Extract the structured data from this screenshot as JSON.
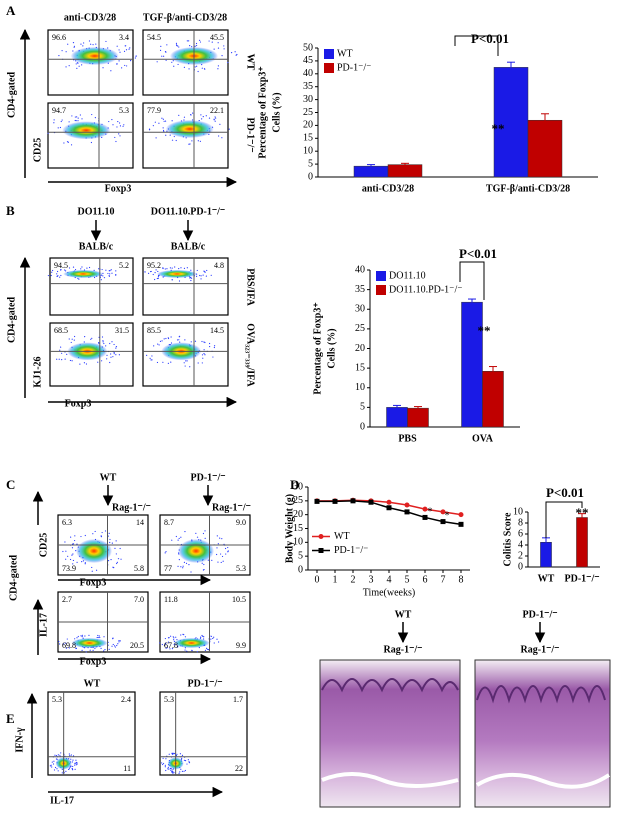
{
  "letters": [
    "A",
    "B",
    "C",
    "D",
    "E"
  ],
  "flow": {
    "a": {
      "columns": [
        "anti-CD3/28",
        "TGF-β/anti-CD3/28"
      ],
      "rows": [
        "WT",
        "PD-1⁻/⁻"
      ],
      "gate": "CD4-gated",
      "y_label": "CD25",
      "x_label": "Foxp3",
      "plots": [
        {
          "ul": "96.6",
          "ur": "3.4"
        },
        {
          "ul": "54.5",
          "ur": "45.5"
        },
        {
          "ul": "94.7",
          "ur": "5.3"
        },
        {
          "ul": "77.9",
          "ur": "22.1"
        }
      ]
    },
    "b": {
      "columns": [
        "DO11.10",
        "DO11.10.PD-1⁻/⁻"
      ],
      "hosts": [
        "BALB/c",
        "BALB/c"
      ],
      "rows": [
        "PBS/IFA",
        "OVA₃₂₃₋₃₃₉/IFA"
      ],
      "gate": "CD4-gated",
      "y_label": "KJ1-26",
      "x_label": "Foxp3",
      "plots": [
        {
          "ul": "94.5",
          "ur": "5.2"
        },
        {
          "ul": "95.2",
          "ur": "4.8"
        },
        {
          "ul": "68.5",
          "ur": "31.5"
        },
        {
          "ul": "85.5",
          "ur": "14.5"
        }
      ]
    },
    "c": {
      "columns": [
        "WT",
        "PD-1⁻/⁻"
      ],
      "hosts": [
        "Rag-1⁻/⁻",
        "Rag-1⁻/⁻"
      ],
      "gate": "CD4-gated",
      "y_labels": [
        "CD25",
        "IL-17"
      ],
      "x_labels": [
        "Foxp3",
        "Foxp3"
      ],
      "plots": [
        {
          "ul": "6.3",
          "ur": "14",
          "ll": "73.9",
          "lr": "5.8"
        },
        {
          "ul": "8.7",
          "ur": "9.0",
          "ll": "77",
          "lr": "5.3"
        },
        {
          "ul": "2.7",
          "ur": "7.0",
          "ll": "69.8",
          "lr": "20.5"
        },
        {
          "ul": "11.8",
          "ur": "10.5",
          "ll": "67.8",
          "lr": "9.9"
        }
      ]
    },
    "e": {
      "columns": [
        "WT",
        "PD-1⁻/⁻"
      ],
      "y_label": "IFN-γ",
      "x_label": "IL-17",
      "plots": [
        {
          "ul": "5.3",
          "ur": "2.4",
          "lr": "11"
        },
        {
          "ul": "5.3",
          "ur": "1.7",
          "lr": "22"
        }
      ]
    }
  },
  "histology": {
    "columns": [
      "WT",
      "PD-1⁻/⁻"
    ],
    "hosts": [
      "Rag-1⁻/⁻",
      "Rag-1⁻/⁻"
    ]
  },
  "chart_data": [
    {
      "type": "bar",
      "ylabel": [
        "Percentage of Foxp3⁺",
        "Cells (%)"
      ],
      "categories": [
        "anti-CD3/28",
        "TGF-β/anti-CD3/28"
      ],
      "series": [
        {
          "name": "WT",
          "color": "#1a1ae6",
          "values": [
            4.2,
            42.5
          ],
          "errors": [
            0.6,
            2
          ]
        },
        {
          "name": "PD-1⁻/⁻",
          "color": "#c00000",
          "values": [
            4.8,
            22
          ],
          "errors": [
            0.5,
            2.5
          ]
        }
      ],
      "ylim": [
        0,
        50
      ],
      "yticks": [
        0,
        5,
        10,
        15,
        20,
        25,
        30,
        35,
        40,
        45,
        50
      ],
      "legend": "upper left",
      "annotations": [
        "P<0.01",
        "**"
      ]
    },
    {
      "type": "bar",
      "ylabel": [
        "Percentage of Foxp3⁺",
        "Cells (%)"
      ],
      "categories": [
        "PBS",
        "OVA"
      ],
      "series": [
        {
          "name": "DO11.10",
          "color": "#1a1ae6",
          "values": [
            5,
            31.8
          ],
          "errors": [
            0.5,
            0.8
          ]
        },
        {
          "name": "DO11.10.PD-1⁻/⁻",
          "color": "#c00000",
          "values": [
            4.8,
            14.2
          ],
          "errors": [
            0.4,
            1.2
          ]
        }
      ],
      "ylim": [
        0,
        40
      ],
      "yticks": [
        0,
        5,
        10,
        15,
        20,
        25,
        30,
        35,
        40
      ],
      "legend": "upper left",
      "annotations": [
        "P<0.01",
        "**"
      ]
    },
    {
      "type": "line",
      "ylabel": "Body Weight (g)",
      "xlabel": "Time(weeks)",
      "x": [
        0,
        1,
        2,
        3,
        4,
        5,
        6,
        7,
        8
      ],
      "series": [
        {
          "name": "WT",
          "color": "#e02020",
          "values": [
            25,
            25,
            25.2,
            25,
            24.5,
            23.5,
            22,
            21,
            20
          ]
        },
        {
          "name": "PD-1⁻/⁻",
          "color": "#000000",
          "values": [
            24.8,
            24.8,
            25,
            24.5,
            22.5,
            21,
            19,
            17.5,
            16.5
          ]
        }
      ],
      "xlim": [
        -0.5,
        8.5
      ],
      "xticks": [
        0,
        1,
        2,
        3,
        4,
        5,
        6,
        7,
        8
      ],
      "ylim": [
        0,
        30
      ],
      "yticks": [
        0,
        5,
        10,
        15,
        20,
        25,
        30
      ],
      "legend": "center left",
      "annotations": [
        "*",
        "*"
      ]
    },
    {
      "type": "bar",
      "ylabel": [
        "Colitis Score"
      ],
      "categories": [
        "WT",
        "PD-1⁻/⁻"
      ],
      "series": [
        {
          "colors": [
            "#1a1ae6",
            "#c00000"
          ],
          "values": [
            4.5,
            9
          ],
          "errors": [
            0.8,
            0.7
          ]
        }
      ],
      "ylim": [
        0,
        10
      ],
      "yticks": [
        0,
        2,
        4,
        6,
        8,
        10
      ],
      "annotations": [
        "P<0.01",
        "**"
      ]
    }
  ]
}
